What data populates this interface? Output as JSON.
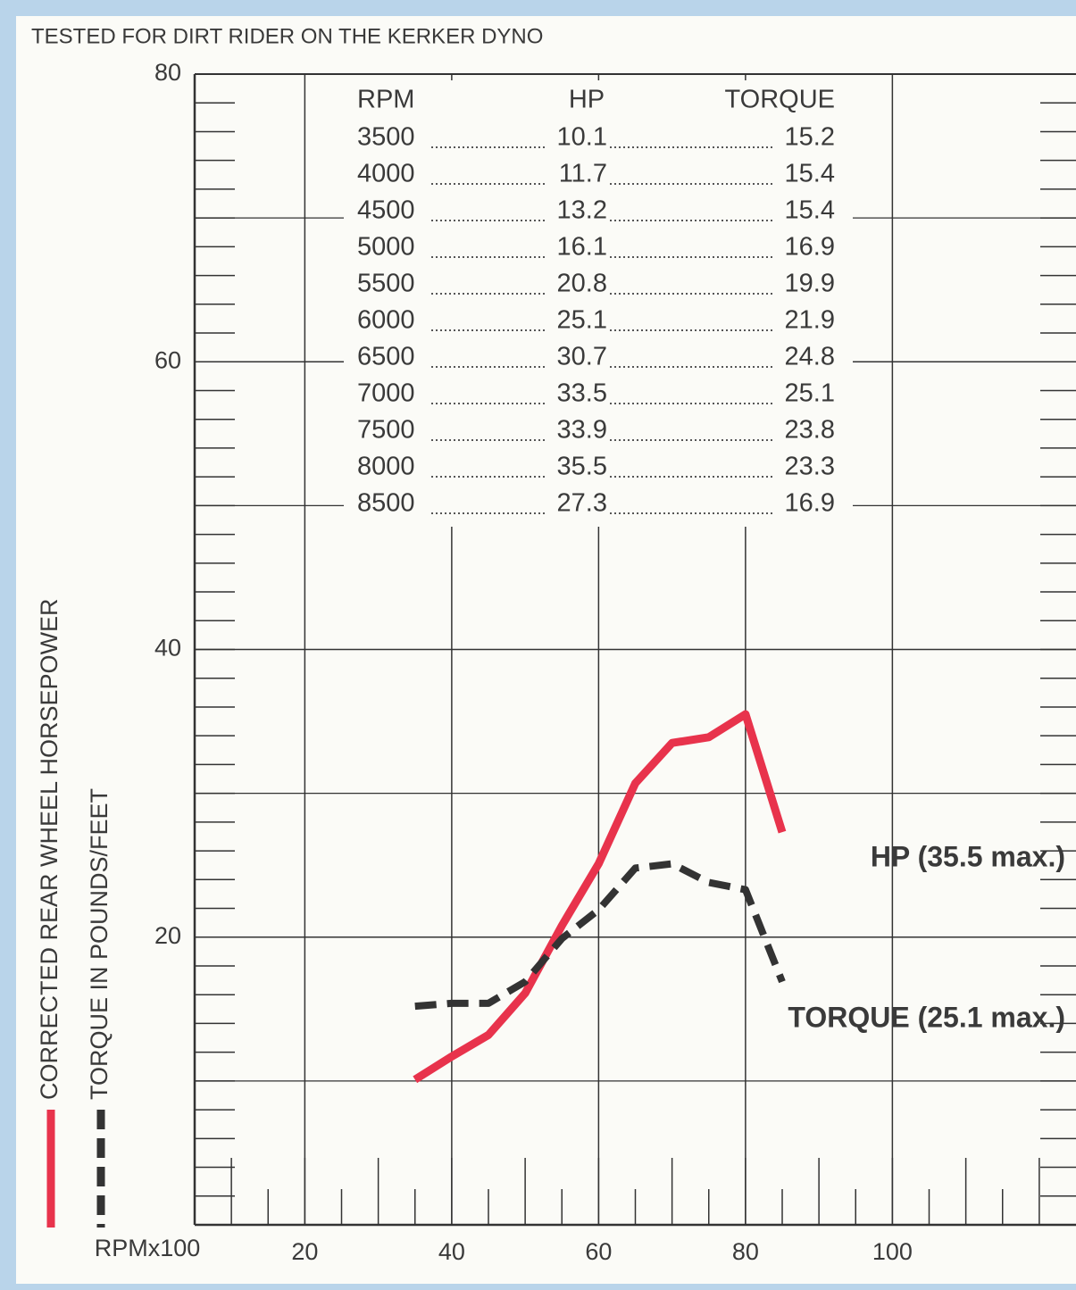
{
  "chart_data": {
    "type": "line",
    "title": "TESTED FOR DIRT RIDER ON THE KERKER DYNO",
    "x_label": "RPMx100",
    "x": [
      35,
      40,
      45,
      50,
      55,
      60,
      65,
      70,
      75,
      80,
      85
    ],
    "series": [
      {
        "name": "CORRECTED REAR WHEEL HORSEPOWER",
        "color": "#e8334c",
        "style": "solid",
        "values": [
          10.1,
          11.7,
          13.2,
          16.1,
          20.8,
          25.1,
          30.7,
          33.5,
          33.9,
          35.5,
          27.3
        ]
      },
      {
        "name": "TORQUE IN POUNDS/FEET",
        "color": "#333333",
        "style": "dashed",
        "values": [
          15.2,
          15.4,
          15.4,
          16.9,
          19.9,
          21.9,
          24.8,
          25.1,
          23.8,
          23.3,
          16.9
        ]
      }
    ],
    "annotations": [
      "HP (35.5 max.)",
      "TORQUE (25.1 max.)"
    ],
    "xlim": [
      5,
      125
    ],
    "ylim": [
      0,
      80
    ],
    "xticks": [
      20,
      40,
      60,
      80,
      100
    ],
    "yticks": [
      20,
      40,
      60,
      80
    ],
    "grid": true,
    "table": {
      "columns": [
        "RPM",
        "HP",
        "TORQUE"
      ],
      "rpm": [
        3500,
        4000,
        4500,
        5000,
        5500,
        6000,
        6500,
        7000,
        7500,
        8000,
        8500
      ]
    }
  }
}
